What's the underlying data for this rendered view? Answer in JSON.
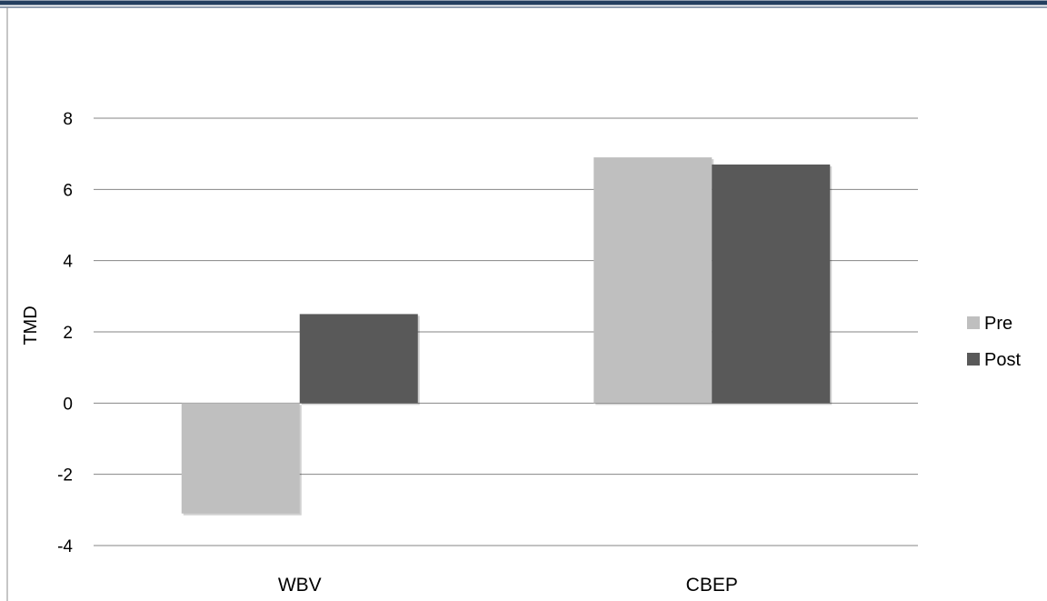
{
  "chart_data": {
    "type": "bar",
    "title": "",
    "xlabel": "",
    "ylabel": "TMD",
    "categories": [
      "WBV",
      "CBEP"
    ],
    "series": [
      {
        "name": "Pre",
        "values": [
          -3.1,
          6.9
        ],
        "color": "#bfbfbf"
      },
      {
        "name": "Post",
        "values": [
          2.5,
          6.7
        ],
        "color": "#595959"
      }
    ],
    "ylim": [
      -4,
      8
    ],
    "yticks": [
      -4,
      -2,
      0,
      2,
      4,
      6,
      8
    ],
    "grid": true,
    "legend_position": "right"
  },
  "frame_color": "#243f60"
}
